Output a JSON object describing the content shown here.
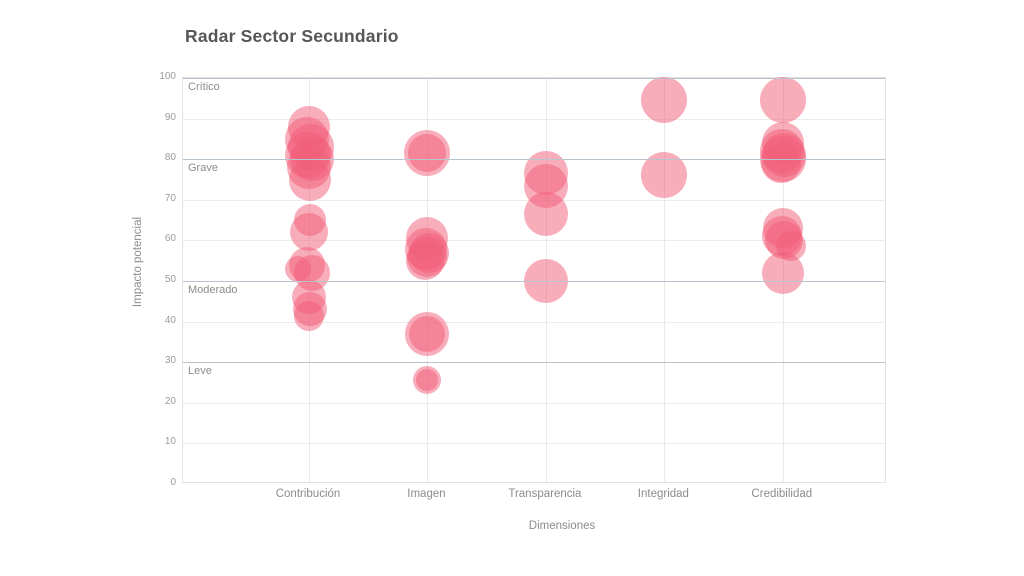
{
  "title": "Radar Sector Secundario",
  "colors": {
    "bubble": "rgba(242,92,120,0.5)",
    "grid": "#ececec",
    "threshold_line": "#b9c3ce",
    "tick_text": "#9b9b9b",
    "label_text": "#8c8c8c",
    "title_text": "#565656"
  },
  "chart_data": {
    "type": "scatter",
    "subtype": "bubble",
    "title": "Radar Sector Secundario",
    "xlabel": "Dimensiones",
    "ylabel": "Impacto potencial",
    "ylim": [
      0,
      100
    ],
    "yticks": [
      0,
      10,
      20,
      30,
      40,
      50,
      60,
      70,
      80,
      90,
      100
    ],
    "grid": true,
    "legend": false,
    "categories": [
      "Contribución",
      "Imagen",
      "Transparencia",
      "Integridad",
      "Credibilidad"
    ],
    "thresholds": [
      {
        "label": "Crítico",
        "value": 100
      },
      {
        "label": "Grave",
        "value": 80
      },
      {
        "label": "Moderado",
        "value": 50
      },
      {
        "label": "Leve",
        "value": 30
      }
    ],
    "points": [
      {
        "dimension": "Contribución",
        "impacto": 88,
        "size": 21,
        "jitter": 0
      },
      {
        "dimension": "Contribución",
        "impacto": 85,
        "size": 22,
        "jitter": -2
      },
      {
        "dimension": "Contribución",
        "impacto": 83,
        "size": 23,
        "jitter": 2
      },
      {
        "dimension": "Contribución",
        "impacto": 81,
        "size": 23,
        "jitter": -1
      },
      {
        "dimension": "Contribución",
        "impacto": 80,
        "size": 22,
        "jitter": 3
      },
      {
        "dimension": "Contribución",
        "impacto": 78,
        "size": 22,
        "jitter": 0
      },
      {
        "dimension": "Contribución",
        "impacto": 75,
        "size": 21,
        "jitter": 1
      },
      {
        "dimension": "Contribución",
        "impacto": 65,
        "size": 16,
        "jitter": 1
      },
      {
        "dimension": "Contribución",
        "impacto": 62,
        "size": 19,
        "jitter": 0
      },
      {
        "dimension": "Contribución",
        "impacto": 54,
        "size": 18,
        "jitter": -2
      },
      {
        "dimension": "Contribución",
        "impacto": 53,
        "size": 13,
        "jitter": -11
      },
      {
        "dimension": "Contribución",
        "impacto": 52,
        "size": 18,
        "jitter": 3
      },
      {
        "dimension": "Contribución",
        "impacto": 46,
        "size": 17,
        "jitter": 0
      },
      {
        "dimension": "Contribución",
        "impacto": 43,
        "size": 17,
        "jitter": 1
      },
      {
        "dimension": "Contribución",
        "impacto": 41.5,
        "size": 15,
        "jitter": 0
      },
      {
        "dimension": "Imagen",
        "impacto": 81.5,
        "size": 23,
        "jitter": 0
      },
      {
        "dimension": "Imagen",
        "impacto": 81.5,
        "size": 19,
        "jitter": 0
      },
      {
        "dimension": "Imagen",
        "impacto": 60.5,
        "size": 21,
        "jitter": 0
      },
      {
        "dimension": "Imagen",
        "impacto": 58,
        "size": 21,
        "jitter": -1
      },
      {
        "dimension": "Imagen",
        "impacto": 57,
        "size": 20,
        "jitter": 2
      },
      {
        "dimension": "Imagen",
        "impacto": 56,
        "size": 20,
        "jitter": 0
      },
      {
        "dimension": "Imagen",
        "impacto": 55,
        "size": 19,
        "jitter": -2
      },
      {
        "dimension": "Imagen",
        "impacto": 37,
        "size": 22,
        "jitter": 0
      },
      {
        "dimension": "Imagen",
        "impacto": 37,
        "size": 18,
        "jitter": 0
      },
      {
        "dimension": "Imagen",
        "impacto": 25.5,
        "size": 14,
        "jitter": 0
      },
      {
        "dimension": "Imagen",
        "impacto": 25.5,
        "size": 11,
        "jitter": 0
      },
      {
        "dimension": "Transparencia",
        "impacto": 76.5,
        "size": 22,
        "jitter": 0
      },
      {
        "dimension": "Transparencia",
        "impacto": 73.5,
        "size": 22,
        "jitter": 0
      },
      {
        "dimension": "Transparencia",
        "impacto": 66.5,
        "size": 22,
        "jitter": 0
      },
      {
        "dimension": "Transparencia",
        "impacto": 50,
        "size": 22,
        "jitter": 0
      },
      {
        "dimension": "Integridad",
        "impacto": 94.5,
        "size": 23,
        "jitter": 0
      },
      {
        "dimension": "Integridad",
        "impacto": 76,
        "size": 23,
        "jitter": 0
      },
      {
        "dimension": "Credibilidad",
        "impacto": 94.5,
        "size": 23,
        "jitter": 0
      },
      {
        "dimension": "Credibilidad",
        "impacto": 84,
        "size": 21,
        "jitter": 0
      },
      {
        "dimension": "Credibilidad",
        "impacto": 82,
        "size": 22,
        "jitter": -1
      },
      {
        "dimension": "Credibilidad",
        "impacto": 81,
        "size": 22,
        "jitter": 1
      },
      {
        "dimension": "Credibilidad",
        "impacto": 80,
        "size": 23,
        "jitter": 0
      },
      {
        "dimension": "Credibilidad",
        "impacto": 79,
        "size": 20,
        "jitter": -2
      },
      {
        "dimension": "Credibilidad",
        "impacto": 63,
        "size": 20,
        "jitter": 0
      },
      {
        "dimension": "Credibilidad",
        "impacto": 61,
        "size": 20,
        "jitter": -1
      },
      {
        "dimension": "Credibilidad",
        "impacto": 60,
        "size": 19,
        "jitter": 1
      },
      {
        "dimension": "Credibilidad",
        "impacto": 58.5,
        "size": 15,
        "jitter": 8
      },
      {
        "dimension": "Credibilidad",
        "impacto": 52,
        "size": 21,
        "jitter": 0
      }
    ]
  }
}
